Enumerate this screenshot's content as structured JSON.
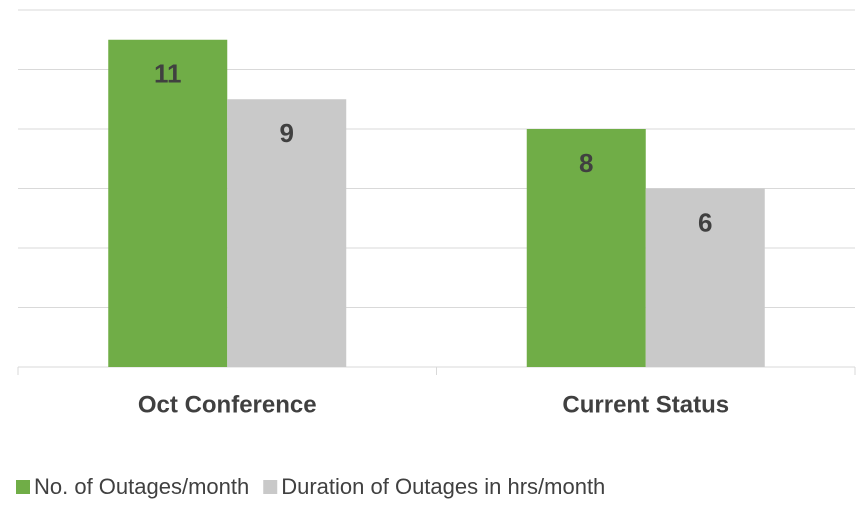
{
  "chart_data": {
    "type": "bar",
    "categories": [
      "Oct Conference",
      "Current Status"
    ],
    "series": [
      {
        "name": "No. of Outages/month",
        "color": "#70ad47",
        "values": [
          11,
          8
        ]
      },
      {
        "name": "Duration of Outages in hrs/month",
        "color": "#c9c9c9",
        "values": [
          9,
          6
        ]
      }
    ],
    "ylim": [
      0,
      12
    ],
    "yticks": [
      0,
      2,
      4,
      6,
      8,
      10,
      12
    ],
    "grid": true,
    "legend": "bottom"
  }
}
